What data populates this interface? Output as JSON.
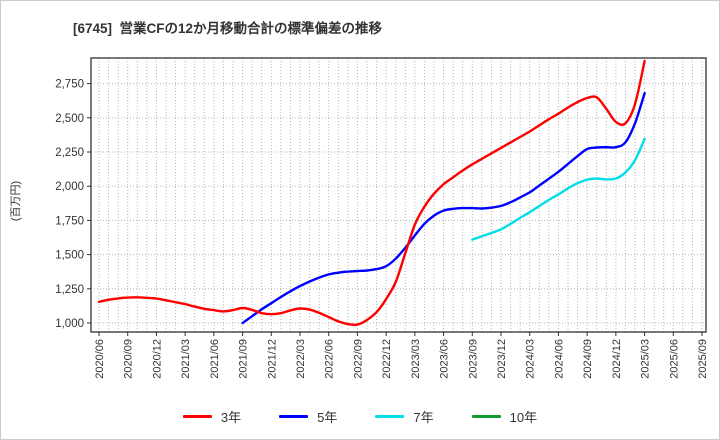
{
  "page": {
    "background": "#ffffff",
    "border_color": "#cccccc"
  },
  "chart_data": {
    "type": "line",
    "title": "[6745]  営業CFの12か月移動合計の標準偏差の推移",
    "ylabel": "(百万円)",
    "x_start": "2020/06",
    "x_end": "2025/09",
    "x_total_months": 64,
    "x_tick_every_months": 3,
    "x_tick_labels": [
      "2020/06",
      "2020/09",
      "2020/12",
      "2021/03",
      "2021/06",
      "2021/09",
      "2021/12",
      "2022/03",
      "2022/06",
      "2022/09",
      "2022/12",
      "2023/03",
      "2023/06",
      "2023/09",
      "2023/12",
      "2024/03",
      "2024/06",
      "2024/09",
      "2024/12",
      "2025/03",
      "2025/06",
      "2025/09"
    ],
    "y_ticks": [
      1000,
      1250,
      1500,
      1750,
      2000,
      2250,
      2500,
      2750
    ],
    "y_tick_labels": [
      "1,000",
      "1,250",
      "1,500",
      "1,750",
      "2,000",
      "2,250",
      "2,500",
      "2,750"
    ],
    "ylim": [
      935,
      2937
    ],
    "grid_style": "dotted",
    "grid_color": "#b5b5b5",
    "axis_color": "#333333",
    "tick_label_color": "#333333",
    "legend_position": "bottom",
    "series": [
      {
        "name": "3年",
        "color": "#ff0000",
        "start_month": "2020/06",
        "start_index": 0,
        "end_month": "2025/03",
        "values": [
          1155,
          1170,
          1180,
          1186,
          1188,
          1184,
          1178,
          1166,
          1152,
          1138,
          1120,
          1104,
          1094,
          1085,
          1094,
          1110,
          1096,
          1072,
          1064,
          1072,
          1092,
          1106,
          1098,
          1074,
          1044,
          1012,
          992,
          988,
          1022,
          1080,
          1175,
          1300,
          1510,
          1720,
          1850,
          1945,
          2015,
          2065,
          2115,
          2160,
          2200,
          2240,
          2280,
          2320,
          2360,
          2400,
          2445,
          2490,
          2530,
          2575,
          2615,
          2645,
          2650,
          2565,
          2470,
          2460,
          2600,
          2915
        ]
      },
      {
        "name": "5年",
        "color": "#0000ff",
        "start_month": "2021/09",
        "start_index": 15,
        "end_month": "2025/03",
        "values": [
          1000,
          1050,
          1100,
          1145,
          1190,
          1232,
          1270,
          1303,
          1332,
          1355,
          1368,
          1376,
          1380,
          1384,
          1394,
          1415,
          1470,
          1550,
          1640,
          1725,
          1785,
          1822,
          1835,
          1840,
          1840,
          1837,
          1843,
          1856,
          1883,
          1918,
          1955,
          2005,
          2055,
          2105,
          2163,
          2220,
          2272,
          2283,
          2285,
          2285,
          2320,
          2460,
          2680
        ]
      },
      {
        "name": "7年",
        "color": "#00dfe8",
        "start_month": "2023/09",
        "start_index": 39,
        "end_month": "2025/03",
        "values": [
          1610,
          1634,
          1658,
          1685,
          1725,
          1768,
          1810,
          1855,
          1900,
          1940,
          1985,
          2022,
          2048,
          2056,
          2050,
          2056,
          2100,
          2190,
          2345
        ]
      },
      {
        "name": "10年",
        "color": "#0f9d30",
        "start_month": null,
        "start_index": null,
        "values": []
      }
    ]
  }
}
